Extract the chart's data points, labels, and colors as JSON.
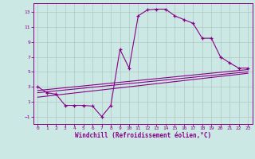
{
  "xlabel": "Windchill (Refroidissement éolien,°C)",
  "bg_color": "#cce8e4",
  "grid_color": "#b0c8c4",
  "line_color": "#880088",
  "xlim": [
    -0.5,
    23.5
  ],
  "ylim": [
    -2.0,
    14.2
  ],
  "xticks": [
    0,
    1,
    2,
    3,
    4,
    5,
    6,
    7,
    8,
    9,
    10,
    11,
    12,
    13,
    14,
    15,
    16,
    17,
    18,
    19,
    20,
    21,
    22,
    23
  ],
  "yticks": [
    -1,
    1,
    3,
    5,
    7,
    9,
    11,
    13
  ],
  "main_x": [
    0,
    1,
    2,
    3,
    4,
    5,
    6,
    7,
    8,
    9,
    10,
    11,
    12,
    13,
    14,
    15,
    16,
    17,
    18,
    19,
    20,
    21,
    22,
    23
  ],
  "main_y": [
    3.0,
    2.2,
    2.0,
    0.5,
    0.5,
    0.5,
    0.4,
    -1.0,
    0.5,
    8.0,
    5.5,
    12.5,
    13.3,
    13.4,
    13.4,
    12.5,
    12.0,
    11.5,
    9.5,
    9.5,
    7.0,
    6.2,
    5.5,
    5.5
  ],
  "line1_x": [
    0,
    23
  ],
  "line1_y": [
    2.5,
    5.3
  ],
  "line2_x": [
    0,
    23
  ],
  "line2_y": [
    2.2,
    5.0
  ],
  "line3_x": [
    0,
    23
  ],
  "line3_y": [
    1.6,
    4.8
  ]
}
